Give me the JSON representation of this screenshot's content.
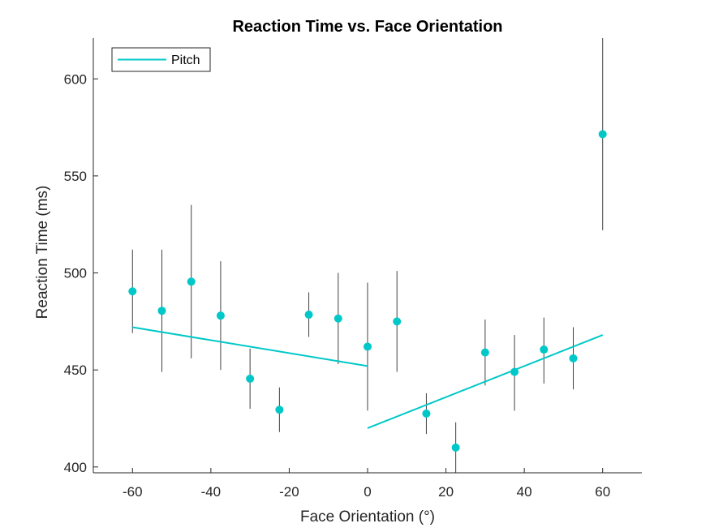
{
  "chart_data": {
    "type": "scatter",
    "title": "Reaction Time vs. Face Orientation",
    "xlabel": "Face Orientation (°)",
    "ylabel": "Reaction Time (ms)",
    "xlim": [
      -70,
      70
    ],
    "ylim": [
      397,
      621
    ],
    "xticks": [
      -60,
      -40,
      -20,
      0,
      20,
      40,
      60
    ],
    "yticks": [
      400,
      450,
      500,
      550,
      600
    ],
    "grid": false,
    "legend": {
      "position": "top-left",
      "entries": [
        "Pitch"
      ]
    },
    "colors": {
      "marker": "#00c8c8",
      "fit": "#00c8c8",
      "errorbar": "#404040",
      "axis": "#262626"
    },
    "points": [
      {
        "x": -60,
        "y": 490.5,
        "lo": 469,
        "hi": 512
      },
      {
        "x": -52.5,
        "y": 480.5,
        "lo": 449,
        "hi": 512
      },
      {
        "x": -45,
        "y": 495.5,
        "lo": 456,
        "hi": 535
      },
      {
        "x": -37.5,
        "y": 478,
        "lo": 450,
        "hi": 506
      },
      {
        "x": -30,
        "y": 445.5,
        "lo": 430,
        "hi": 461
      },
      {
        "x": -22.5,
        "y": 429.5,
        "lo": 418,
        "hi": 441
      },
      {
        "x": -15,
        "y": 478.5,
        "lo": 467,
        "hi": 490
      },
      {
        "x": -7.5,
        "y": 476.5,
        "lo": 453,
        "hi": 500
      },
      {
        "x": 0,
        "y": 462,
        "lo": 429,
        "hi": 495
      },
      {
        "x": 7.5,
        "y": 475,
        "lo": 449,
        "hi": 501
      },
      {
        "x": 15,
        "y": 427.5,
        "lo": 417,
        "hi": 438
      },
      {
        "x": 22.5,
        "y": 410,
        "lo": 397,
        "hi": 423
      },
      {
        "x": 30,
        "y": 459,
        "lo": 442,
        "hi": 476
      },
      {
        "x": 37.5,
        "y": 449,
        "lo": 429,
        "hi": 468
      },
      {
        "x": 45,
        "y": 460.5,
        "lo": 443,
        "hi": 477
      },
      {
        "x": 52.5,
        "y": 456,
        "lo": 440,
        "hi": 472
      },
      {
        "x": 60,
        "y": 571.5,
        "lo": 522,
        "hi": 621
      }
    ],
    "fit_lines": [
      {
        "name": "Pitch",
        "x": [
          -60,
          0
        ],
        "y": [
          472,
          452
        ]
      },
      {
        "x": [
          0,
          60
        ],
        "y": [
          420,
          468
        ]
      }
    ]
  }
}
